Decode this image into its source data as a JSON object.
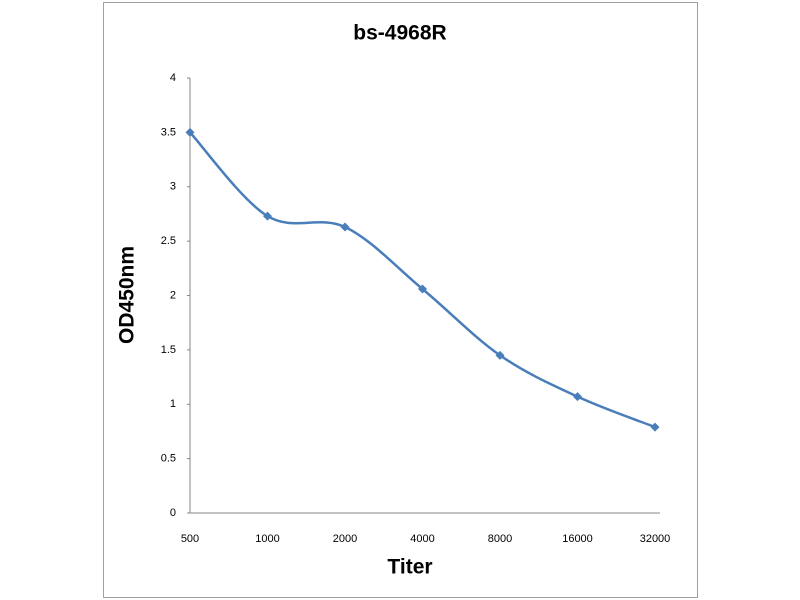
{
  "chart_data": {
    "type": "line",
    "title": "bs-4968R",
    "x_label": "Titer",
    "y_label": "OD450nm",
    "categories": [
      "500",
      "1000",
      "2000",
      "4000",
      "8000",
      "16000",
      "32000"
    ],
    "series": [
      {
        "name": "bs-4968R",
        "color": "#4a7ebb",
        "values": [
          3.5,
          2.73,
          2.63,
          2.06,
          1.45,
          1.07,
          0.79
        ]
      }
    ],
    "ylim": [
      0,
      4
    ],
    "yticks": [
      0,
      0.5,
      1,
      1.5,
      2,
      2.5,
      3,
      3.5,
      4
    ],
    "grid": false,
    "smooth": true,
    "legend": false
  }
}
